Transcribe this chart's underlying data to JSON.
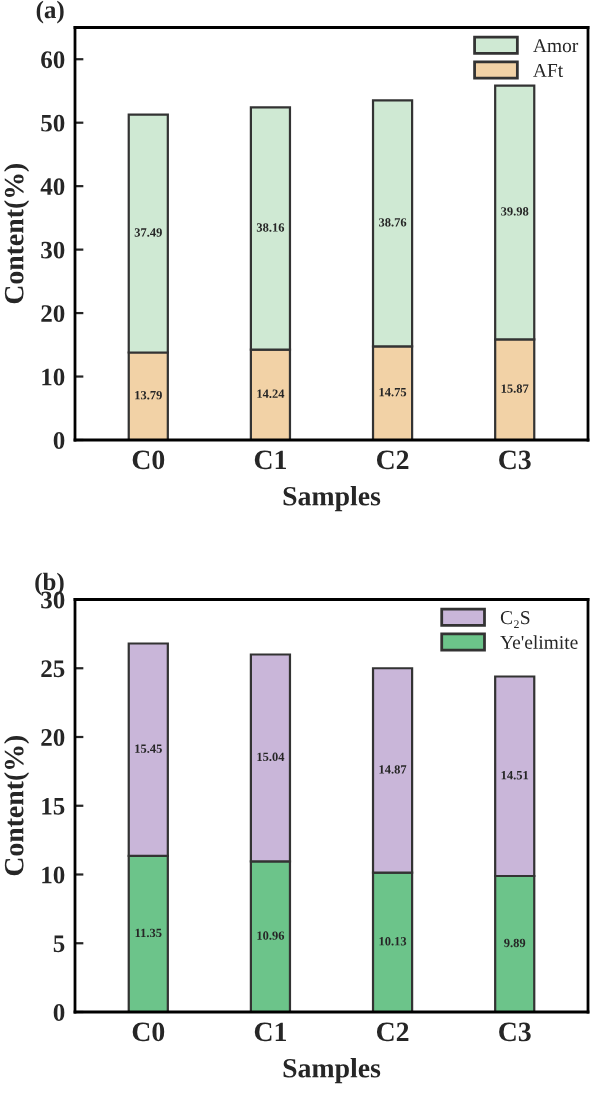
{
  "chart_data": [
    {
      "type": "bar",
      "stacked": true,
      "annotations": [
        "(a)"
      ],
      "xlabel": "Samples",
      "ylabel": "Content(%)",
      "categories": [
        "C0",
        "C1",
        "C2",
        "C3"
      ],
      "series": [
        {
          "name": "AFt",
          "color": "#f2d2a6",
          "values": [
            13.79,
            14.24,
            14.75,
            15.87
          ]
        },
        {
          "name": "Amor",
          "color": "#cfe9d3",
          "values": [
            37.49,
            38.16,
            38.76,
            39.98
          ]
        }
      ],
      "ylim": [
        0,
        65
      ],
      "yticks": [
        0,
        10,
        20,
        30,
        40,
        50,
        60
      ],
      "legend": "top right",
      "data_labels": true,
      "grid": false
    },
    {
      "type": "bar",
      "stacked": true,
      "annotations": [
        "(b)"
      ],
      "xlabel": "Samples",
      "ylabel": "Content(%)",
      "categories": [
        "C0",
        "C1",
        "C2",
        "C3"
      ],
      "series": [
        {
          "name": "Ye'elimite",
          "color": "#6cc48a",
          "values": [
            11.35,
            10.96,
            10.13,
            9.89
          ]
        },
        {
          "name": "C₂S",
          "color": "#c9b6d9",
          "values": [
            15.45,
            15.04,
            14.87,
            14.51
          ]
        }
      ],
      "ylim": [
        0,
        30
      ],
      "yticks": [
        0,
        5,
        10,
        15,
        20,
        25,
        30
      ],
      "legend": "top right",
      "data_labels": true,
      "grid": false
    }
  ]
}
